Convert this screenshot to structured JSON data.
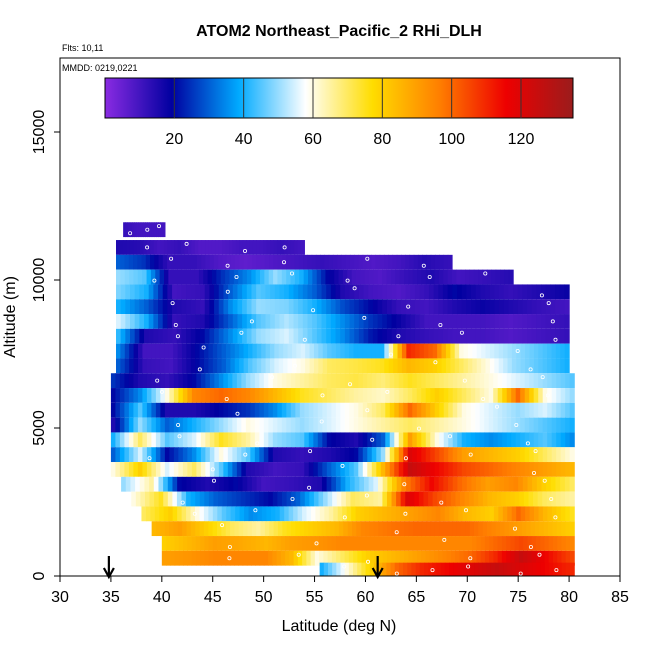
{
  "chart_data": {
    "type": "heatmap",
    "title": "ATOM2 Northeast_Pacific_2 RHi_DLH",
    "flights_note": "Flts: 10,11",
    "date_note": "MMDD: 0219,0221",
    "xlabel": "Latitude (deg N)",
    "ylabel": "Altitude (m)",
    "xlim": [
      30,
      85
    ],
    "ylim": [
      0,
      17500
    ],
    "x_ticks": [
      "30",
      "35",
      "40",
      "45",
      "50",
      "55",
      "60",
      "65",
      "70",
      "75",
      "80",
      "85"
    ],
    "y_ticks": [
      "0",
      "5000",
      "10000",
      "15000"
    ],
    "colorbar": {
      "min": 0,
      "max": 135,
      "ticks": [
        "20",
        "40",
        "60",
        "80",
        "100",
        "120"
      ],
      "stops": [
        "#8a2be2",
        "#0000a0",
        "#00aaff",
        "#ffffff",
        "#ffdd00",
        "#ff7f00",
        "#ee0000",
        "#9b1c1c"
      ]
    },
    "arrows_latitude": [
      34.8,
      61.2
    ],
    "altitude_bands": [
      {
        "alt": 11700,
        "lat": [
          36.2,
          40.3
        ],
        "values": [
          12,
          10,
          10,
          10
        ]
      },
      {
        "alt": 11100,
        "lat": [
          35.5,
          54.0
        ],
        "values": [
          15,
          14,
          10,
          12,
          8,
          8,
          10,
          10,
          12,
          10
        ]
      },
      {
        "alt": 10600,
        "lat": [
          35.5,
          68.5
        ],
        "values": [
          30,
          25,
          12,
          12,
          8,
          6,
          8,
          10,
          12,
          10,
          8,
          10,
          14,
          12
        ]
      },
      {
        "alt": 10100,
        "lat": [
          35.5,
          74.5
        ],
        "values": [
          50,
          45,
          12,
          12,
          25,
          35,
          50,
          40,
          20,
          10,
          8,
          12,
          15,
          10,
          12,
          14
        ]
      },
      {
        "alt": 9600,
        "lat": [
          35.5,
          80.0
        ],
        "values": [
          48,
          40,
          10,
          12,
          30,
          45,
          40,
          30,
          15,
          10,
          8,
          12,
          20,
          15,
          12,
          15,
          18
        ]
      },
      {
        "alt": 9100,
        "lat": [
          35.5,
          80.0
        ],
        "values": [
          40,
          30,
          15,
          12,
          35,
          50,
          48,
          40,
          28,
          20,
          12,
          10,
          15,
          18,
          15,
          12,
          10
        ]
      },
      {
        "alt": 8600,
        "lat": [
          35.5,
          80.0
        ],
        "values": [
          55,
          40,
          12,
          15,
          30,
          45,
          52,
          45,
          35,
          25,
          18,
          10,
          10,
          10,
          8,
          10,
          12
        ]
      },
      {
        "alt": 8100,
        "lat": [
          35.5,
          80.0
        ],
        "values": [
          42,
          15,
          12,
          20,
          35,
          50,
          55,
          45,
          35,
          22,
          15,
          12,
          10,
          10,
          8,
          10,
          12
        ]
      },
      {
        "alt": 7600,
        "lat": [
          35.5,
          80.0
        ],
        "values": [
          35,
          10,
          10,
          20,
          30,
          40,
          50,
          55,
          45,
          40,
          40,
          110,
          100,
          60,
          55,
          50,
          45,
          40
        ]
      },
      {
        "alt": 7100,
        "lat": [
          35.5,
          80.0
        ],
        "values": [
          30,
          12,
          10,
          20,
          30,
          45,
          55,
          60,
          70,
          72,
          75,
          85,
          80,
          70,
          60,
          50,
          45,
          40
        ]
      },
      {
        "alt": 6600,
        "lat": [
          35.0,
          80.5
        ],
        "values": [
          25,
          15,
          12,
          20,
          35,
          50,
          60,
          65,
          70,
          72,
          68,
          75,
          70,
          65,
          60,
          55,
          50,
          45
        ]
      },
      {
        "alt": 6100,
        "lat": [
          35.0,
          80.5
        ],
        "values": [
          20,
          35,
          60,
          95,
          100,
          95,
          85,
          75,
          70,
          65,
          62,
          70,
          80,
          70,
          60,
          100,
          60,
          50
        ]
      },
      {
        "alt": 5600,
        "lat": [
          35.0,
          80.5
        ],
        "values": [
          20,
          45,
          15,
          15,
          20,
          25,
          35,
          50,
          55,
          60,
          70,
          100,
          80,
          60,
          55,
          50,
          55,
          45
        ]
      },
      {
        "alt": 5100,
        "lat": [
          35.0,
          80.5
        ],
        "values": [
          15,
          50,
          30,
          40,
          50,
          60,
          55,
          50,
          55,
          60,
          65,
          70,
          65,
          60,
          55,
          50,
          45,
          40
        ]
      },
      {
        "alt": 4600,
        "lat": [
          35.0,
          80.5
        ],
        "values": [
          40,
          70,
          45,
          55,
          75,
          65,
          50,
          45,
          20,
          15,
          30,
          90,
          60,
          40,
          35,
          40,
          45,
          35
        ]
      },
      {
        "alt": 4100,
        "lat": [
          35.0,
          80.5
        ],
        "values": [
          30,
          55,
          20,
          35,
          60,
          45,
          15,
          12,
          15,
          20,
          50,
          120,
          105,
          90,
          85,
          80,
          70,
          60
        ]
      },
      {
        "alt": 3600,
        "lat": [
          35.0,
          80.5
        ],
        "values": [
          60,
          80,
          55,
          70,
          45,
          15,
          10,
          12,
          30,
          45,
          85,
          125,
          115,
          105,
          100,
          95,
          90,
          85
        ]
      },
      {
        "alt": 3100,
        "lat": [
          36.0,
          80.5
        ],
        "values": [
          50,
          65,
          20,
          15,
          20,
          10,
          12,
          15,
          40,
          55,
          95,
          115,
          100,
          90,
          95,
          80,
          70
        ]
      },
      {
        "alt": 2600,
        "lat": [
          37.0,
          80.5
        ],
        "values": [
          60,
          75,
          40,
          30,
          25,
          20,
          30,
          50,
          70,
          65,
          120,
          105,
          95,
          85,
          80,
          70,
          65
        ]
      },
      {
        "alt": 2100,
        "lat": [
          38.0,
          80.5
        ],
        "values": [
          70,
          80,
          60,
          45,
          35,
          40,
          55,
          65,
          80,
          85,
          90,
          95,
          85,
          80,
          100,
          85,
          75
        ]
      },
      {
        "alt": 1600,
        "lat": [
          39.0,
          80.5
        ],
        "values": [
          85,
          90,
          80,
          70,
          65,
          75,
          80,
          85,
          95,
          98,
          100,
          100,
          100,
          95,
          90,
          85,
          80
        ]
      },
      {
        "alt": 1100,
        "lat": [
          40.0,
          80.5
        ],
        "values": [
          80,
          85,
          90,
          88,
          85,
          90,
          92,
          95,
          95,
          95,
          95,
          95,
          95,
          100,
          105,
          100,
          95
        ]
      },
      {
        "alt": 600,
        "lat": [
          40.0,
          80.5
        ],
        "values": [
          90,
          92,
          95,
          95,
          95,
          85,
          60,
          70,
          80,
          85,
          90,
          95,
          100,
          110,
          125,
          115,
          105
        ]
      },
      {
        "alt": 200,
        "lat": [
          55.5,
          80.5
        ],
        "values": [
          40,
          60,
          80,
          100,
          110,
          115,
          120,
          125,
          120,
          115,
          110
        ]
      }
    ]
  }
}
